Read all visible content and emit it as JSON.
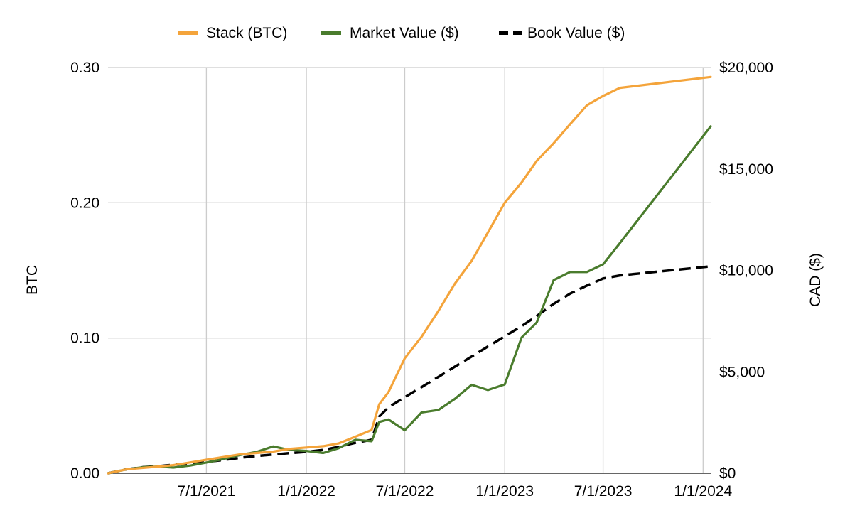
{
  "chart_data": {
    "type": "line",
    "x_type": "date",
    "xlim": [
      "2021-01-01",
      "2024-01-15"
    ],
    "x_ticks": [
      {
        "date": "2021-07-01",
        "label": "7/1/2021"
      },
      {
        "date": "2022-01-01",
        "label": "1/1/2022"
      },
      {
        "date": "2022-07-01",
        "label": "7/1/2022"
      },
      {
        "date": "2023-01-01",
        "label": "1/1/2023"
      },
      {
        "date": "2023-07-01",
        "label": "7/1/2023"
      },
      {
        "date": "2024-01-01",
        "label": "1/1/2024"
      }
    ],
    "y_left": {
      "label": "BTC",
      "lim": [
        0,
        0.3
      ],
      "ticks": [
        {
          "value": 0,
          "label": "0.00"
        },
        {
          "value": 0.1,
          "label": "0.10"
        },
        {
          "value": 0.2,
          "label": "0.20"
        },
        {
          "value": 0.3,
          "label": "0.30"
        }
      ]
    },
    "y_right": {
      "label": "CAD ($)",
      "lim": [
        0,
        20000
      ],
      "ticks": [
        {
          "value": 0,
          "label": "$0"
        },
        {
          "value": 5000,
          "label": "$5,000"
        },
        {
          "value": 10000,
          "label": "$10,000"
        },
        {
          "value": 15000,
          "label": "$15,000"
        },
        {
          "value": 20000,
          "label": "$20,000"
        }
      ]
    },
    "grid": true,
    "legend": "top",
    "series": [
      {
        "name": "Stack (BTC)",
        "axis": "left",
        "color": "#f4a43b",
        "dash": "solid",
        "x": [
          "2021-01-01",
          "2021-02-05",
          "2021-03-07",
          "2021-04-05",
          "2021-05-01",
          "2021-06-01",
          "2021-07-01",
          "2021-08-01",
          "2021-09-01",
          "2021-10-01",
          "2021-11-01",
          "2021-12-01",
          "2022-01-01",
          "2022-02-01",
          "2022-03-01",
          "2022-04-01",
          "2022-05-01",
          "2022-05-15",
          "2022-06-01",
          "2022-07-01",
          "2022-08-01",
          "2022-09-01",
          "2022-10-01",
          "2022-11-01",
          "2022-12-01",
          "2023-01-01",
          "2023-02-01",
          "2023-03-01",
          "2023-04-01",
          "2023-05-01",
          "2023-06-01",
          "2023-07-01",
          "2023-08-01",
          "2024-01-15"
        ],
        "values": [
          0.0,
          0.003,
          0.004,
          0.005,
          0.006,
          0.008,
          0.01,
          0.012,
          0.014,
          0.015,
          0.016,
          0.018,
          0.019,
          0.02,
          0.022,
          0.027,
          0.032,
          0.051,
          0.06,
          0.085,
          0.101,
          0.12,
          0.14,
          0.157,
          0.178,
          0.2,
          0.215,
          0.231,
          0.244,
          0.258,
          0.272,
          0.279,
          0.285,
          0.293
        ]
      },
      {
        "name": "Market Value ($)",
        "axis": "right",
        "color": "#4a7c2d",
        "dash": "solid",
        "x": [
          "2021-01-01",
          "2021-02-05",
          "2021-03-07",
          "2021-04-05",
          "2021-05-01",
          "2021-06-01",
          "2021-07-01",
          "2021-08-01",
          "2021-09-01",
          "2021-10-01",
          "2021-11-01",
          "2021-12-01",
          "2022-01-01",
          "2022-02-01",
          "2022-03-01",
          "2022-04-01",
          "2022-05-01",
          "2022-05-15",
          "2022-06-01",
          "2022-07-01",
          "2022-08-01",
          "2022-09-01",
          "2022-10-01",
          "2022-11-01",
          "2022-12-01",
          "2023-01-01",
          "2023-02-01",
          "2023-03-01",
          "2023-04-01",
          "2023-05-01",
          "2023-06-01",
          "2023-07-01",
          "2023-08-01",
          "2024-01-15"
        ],
        "values": [
          0,
          200,
          300,
          330,
          280,
          380,
          530,
          700,
          900,
          1050,
          1320,
          1150,
          1100,
          1000,
          1230,
          1650,
          1580,
          2530,
          2650,
          2120,
          3000,
          3120,
          3660,
          4360,
          4100,
          4380,
          6690,
          7440,
          9520,
          9920,
          9920,
          10300,
          11350,
          17100
        ]
      },
      {
        "name": "Book Value ($)",
        "axis": "right",
        "color": "#000000",
        "dash": "dashed",
        "x": [
          "2021-01-01",
          "2021-02-05",
          "2021-03-07",
          "2021-04-05",
          "2021-05-01",
          "2021-06-01",
          "2021-07-01",
          "2021-08-01",
          "2021-09-01",
          "2021-10-01",
          "2021-11-01",
          "2021-12-01",
          "2022-01-01",
          "2022-02-01",
          "2022-03-01",
          "2022-04-01",
          "2022-05-01",
          "2022-05-15",
          "2022-06-01",
          "2022-07-01",
          "2022-08-01",
          "2022-09-01",
          "2022-10-01",
          "2022-11-01",
          "2022-12-01",
          "2023-01-01",
          "2023-02-01",
          "2023-03-01",
          "2023-04-01",
          "2023-05-01",
          "2023-06-01",
          "2023-07-01",
          "2023-08-01",
          "2024-01-15"
        ],
        "values": [
          0,
          200,
          300,
          350,
          420,
          480,
          560,
          650,
          760,
          850,
          920,
          990,
          1050,
          1150,
          1300,
          1500,
          1650,
          2800,
          3250,
          3750,
          4250,
          4750,
          5250,
          5750,
          6250,
          6750,
          7250,
          7750,
          8350,
          8850,
          9250,
          9600,
          9750,
          10200
        ]
      }
    ]
  }
}
